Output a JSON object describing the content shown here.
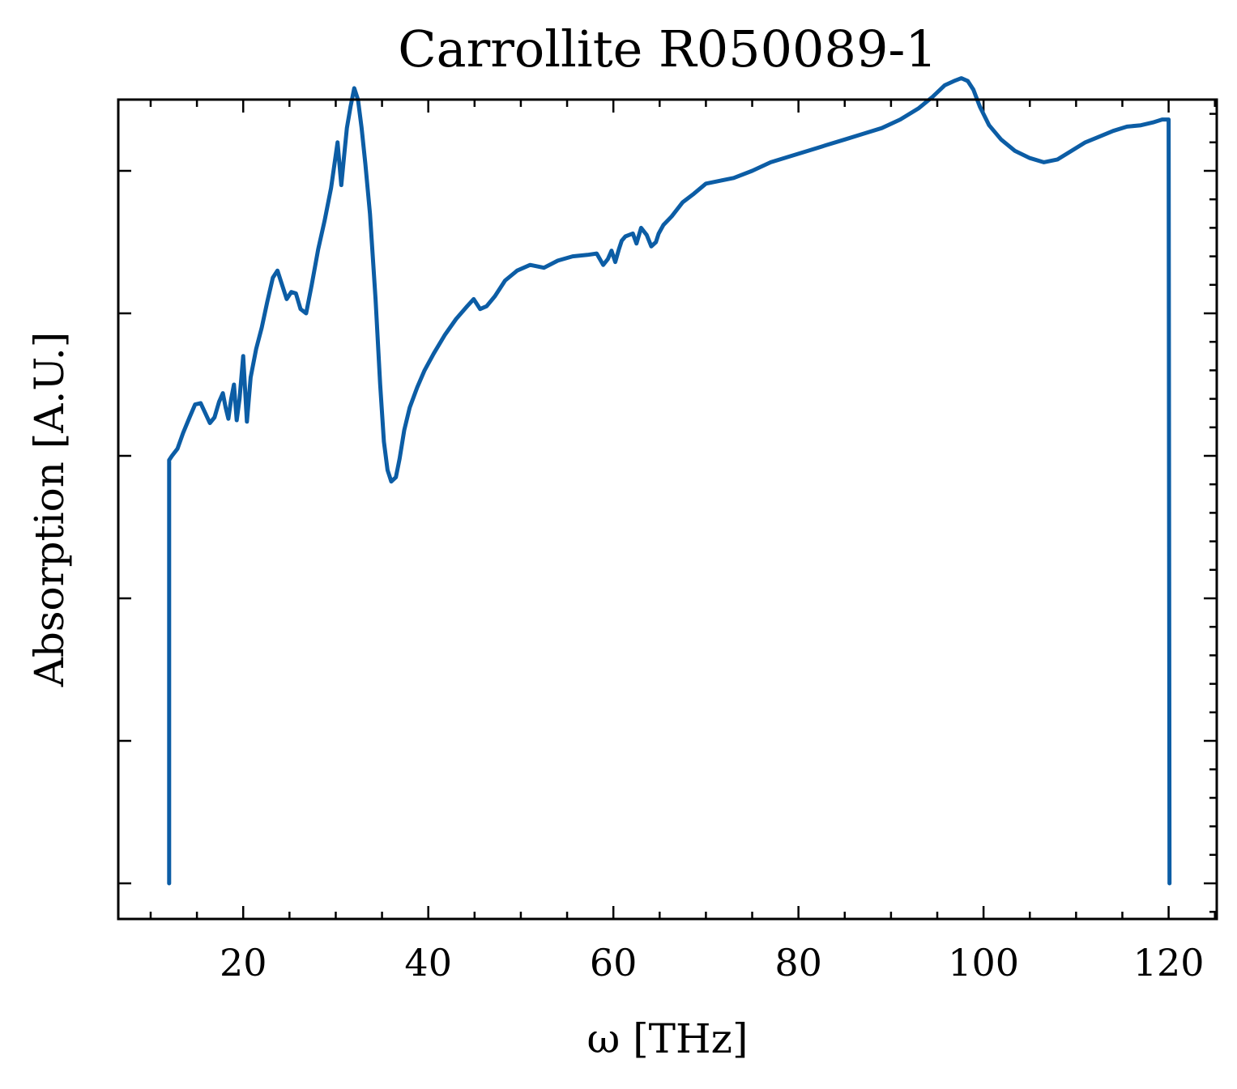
{
  "chart_data": {
    "type": "line",
    "title": "Carrollite R050089-1",
    "xlabel": "ω [THz]",
    "ylabel": "Absorption [A.U.]",
    "xlim": [
      6.5,
      125.2
    ],
    "ylim": [
      -0.025,
      0.55
    ],
    "x_ticks": [
      20,
      40,
      60,
      80,
      100,
      120
    ],
    "x_tick_labels": [
      "20",
      "40",
      "60",
      "80",
      "100",
      "120"
    ],
    "y_major_ticks": [
      0.0,
      0.1,
      0.2,
      0.3,
      0.4,
      0.5
    ],
    "y_tick_labels_shown": false,
    "grid": false,
    "legend": "none",
    "series_color": "#0C5DA5",
    "series": [
      {
        "x": [
          12.0,
          12.0,
          12.3,
          12.9,
          13.5,
          14.2,
          14.8,
          15.4,
          15.9,
          16.4,
          16.9,
          17.4,
          17.8,
          18.1,
          18.4,
          18.7,
          19.0,
          19.3,
          19.6,
          20.0,
          20.4,
          20.8,
          21.4,
          22.0,
          22.6,
          23.2,
          23.7,
          24.2,
          24.7,
          25.2,
          25.7,
          26.2,
          26.8,
          27.4,
          28.1,
          28.8,
          29.5,
          30.2,
          30.6,
          30.9,
          31.2,
          31.6,
          32.0,
          32.4,
          32.8,
          33.2,
          33.7,
          34.3,
          34.8,
          35.2,
          35.6,
          36.0,
          36.5,
          36.9,
          37.4,
          38.0,
          38.8,
          39.6,
          40.6,
          41.8,
          43.0,
          44.2,
          44.9,
          45.6,
          46.3,
          47.2,
          48.3,
          49.6,
          51.0,
          52.5,
          54.0,
          55.6,
          57.2,
          58.2,
          58.9,
          59.4,
          59.8,
          60.2,
          60.6,
          60.9,
          61.3,
          61.7,
          62.1,
          62.5,
          63.0,
          63.6,
          64.1,
          64.6,
          64.9,
          65.4,
          66.3,
          67.5,
          68.7,
          70.0,
          71.5,
          73.0,
          75.0,
          77.0,
          79.0,
          81.0,
          83.0,
          85.0,
          87.0,
          89.0,
          91.0,
          93.0,
          94.5,
          95.8,
          96.8,
          97.6,
          98.3,
          98.9,
          99.6,
          100.6,
          101.9,
          103.4,
          105.0,
          106.5,
          108.0,
          109.5,
          111.0,
          112.5,
          114.0,
          115.5,
          117.0,
          118.3,
          119.3,
          120.0,
          120.1
        ],
        "y": [
          0.0,
          0.297,
          0.3,
          0.305,
          0.316,
          0.327,
          0.336,
          0.337,
          0.33,
          0.323,
          0.327,
          0.338,
          0.344,
          0.334,
          0.326,
          0.34,
          0.35,
          0.325,
          0.34,
          0.37,
          0.324,
          0.355,
          0.375,
          0.39,
          0.408,
          0.425,
          0.43,
          0.42,
          0.41,
          0.415,
          0.414,
          0.403,
          0.4,
          0.42,
          0.445,
          0.465,
          0.488,
          0.52,
          0.49,
          0.51,
          0.53,
          0.545,
          0.558,
          0.55,
          0.53,
          0.505,
          0.47,
          0.41,
          0.35,
          0.31,
          0.29,
          0.282,
          0.285,
          0.298,
          0.318,
          0.334,
          0.348,
          0.36,
          0.372,
          0.385,
          0.396,
          0.405,
          0.41,
          0.403,
          0.405,
          0.412,
          0.423,
          0.43,
          0.434,
          0.432,
          0.437,
          0.44,
          0.441,
          0.442,
          0.434,
          0.438,
          0.444,
          0.436,
          0.445,
          0.451,
          0.454,
          0.455,
          0.456,
          0.449,
          0.46,
          0.455,
          0.447,
          0.45,
          0.456,
          0.462,
          0.468,
          0.478,
          0.484,
          0.491,
          0.493,
          0.495,
          0.5,
          0.506,
          0.51,
          0.514,
          0.518,
          0.522,
          0.526,
          0.53,
          0.536,
          0.544,
          0.552,
          0.56,
          0.563,
          0.565,
          0.563,
          0.557,
          0.545,
          0.532,
          0.522,
          0.514,
          0.509,
          0.506,
          0.508,
          0.514,
          0.52,
          0.524,
          0.528,
          0.531,
          0.532,
          0.534,
          0.536,
          0.536,
          0.0
        ]
      }
    ]
  }
}
